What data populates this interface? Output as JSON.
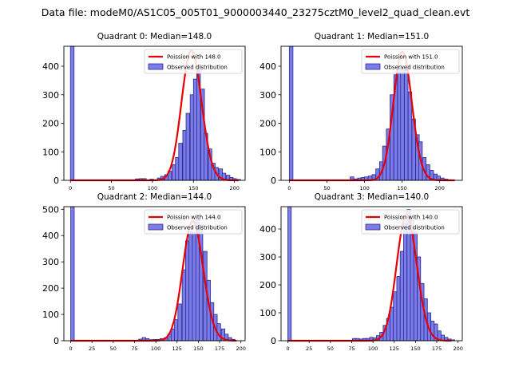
{
  "suptitle": "Data file: modeM0/AS1C05_005T01_9000003440_23275cztM0_level2_quad_clean.evt",
  "colors": {
    "bar_fill": "#7b7bea",
    "bar_edge": "#2b2b8c",
    "curve": "#e60000"
  },
  "chart_data": [
    {
      "type": "bar",
      "title": "Quadrant 0: Median=148.0",
      "legend": {
        "position": "top-right",
        "curve_label": "Poission with 148.0",
        "hist_label": "Observed distribution"
      },
      "xlim": [
        -8,
        213
      ],
      "ylim": [
        0,
        470
      ],
      "xticks": [
        0,
        50,
        100,
        150,
        200
      ],
      "yticks": [
        0,
        100,
        200,
        300,
        400
      ],
      "bin_width": 4.4,
      "bins": [
        [
          0,
          470
        ],
        [
          79,
          5
        ],
        [
          84,
          6
        ],
        [
          88,
          6
        ],
        [
          97,
          4
        ],
        [
          106,
          8
        ],
        [
          110,
          14
        ],
        [
          115,
          20
        ],
        [
          119,
          32
        ],
        [
          124,
          55
        ],
        [
          128,
          80
        ],
        [
          132,
          130
        ],
        [
          137,
          175
        ],
        [
          141,
          235
        ],
        [
          146,
          300
        ],
        [
          150,
          355
        ],
        [
          154,
          385
        ],
        [
          159,
          320
        ],
        [
          163,
          165
        ],
        [
          168,
          110
        ],
        [
          172,
          60
        ],
        [
          176,
          45
        ],
        [
          181,
          40
        ],
        [
          185,
          25
        ],
        [
          190,
          18
        ],
        [
          194,
          10
        ],
        [
          198,
          6
        ],
        [
          203,
          3
        ]
      ],
      "poisson_mean": 148.0,
      "poisson_peak": 455,
      "curve_range": [
        0,
        205
      ]
    },
    {
      "type": "bar",
      "title": "Quadrant 1: Median=151.0",
      "legend": {
        "position": "top-right",
        "curve_label": "Poission with 151.0",
        "hist_label": "Observed distribution"
      },
      "xlim": [
        -11,
        230
      ],
      "ylim": [
        0,
        470
      ],
      "xticks": [
        0,
        50,
        100,
        150,
        200
      ],
      "yticks": [
        0,
        100,
        200,
        300,
        400
      ],
      "bin_width": 4.8,
      "bins": [
        [
          0,
          470
        ],
        [
          81,
          12
        ],
        [
          86,
          5
        ],
        [
          91,
          8
        ],
        [
          96,
          10
        ],
        [
          100,
          12
        ],
        [
          105,
          15
        ],
        [
          110,
          20
        ],
        [
          115,
          40
        ],
        [
          120,
          65
        ],
        [
          124,
          120
        ],
        [
          129,
          180
        ],
        [
          134,
          300
        ],
        [
          139,
          370
        ],
        [
          144,
          390
        ],
        [
          148,
          400
        ],
        [
          153,
          385
        ],
        [
          158,
          310
        ],
        [
          163,
          215
        ],
        [
          168,
          160
        ],
        [
          172,
          135
        ],
        [
          177,
          80
        ],
        [
          182,
          55
        ],
        [
          187,
          35
        ],
        [
          192,
          22
        ],
        [
          196,
          15
        ],
        [
          201,
          8
        ],
        [
          206,
          4
        ],
        [
          211,
          2
        ]
      ],
      "poisson_mean": 151.0,
      "poisson_peak": 450,
      "curve_range": [
        0,
        220
      ]
    },
    {
      "type": "bar",
      "title": "Quadrant 2: Median=144.0",
      "legend": {
        "position": "top-right",
        "curve_label": "Poission with 144.0",
        "hist_label": "Observed distribution"
      },
      "xlim": [
        -8,
        205
      ],
      "ylim": [
        0,
        510
      ],
      "xticks": [
        0,
        25,
        50,
        75,
        100,
        125,
        150,
        175,
        200
      ],
      "yticks": [
        0,
        100,
        200,
        300,
        400,
        500
      ],
      "bin_width": 4.2,
      "bins": [
        [
          0,
          510
        ],
        [
          80,
          6
        ],
        [
          84,
          12
        ],
        [
          88,
          8
        ],
        [
          93,
          4
        ],
        [
          97,
          5
        ],
        [
          101,
          5
        ],
        [
          105,
          8
        ],
        [
          110,
          12
        ],
        [
          114,
          25
        ],
        [
          118,
          45
        ],
        [
          122,
          80
        ],
        [
          126,
          140
        ],
        [
          131,
          270
        ],
        [
          135,
          380
        ],
        [
          139,
          415
        ],
        [
          143,
          410
        ],
        [
          147,
          460
        ],
        [
          151,
          440
        ],
        [
          156,
          340
        ],
        [
          160,
          230
        ],
        [
          164,
          145
        ],
        [
          168,
          100
        ],
        [
          172,
          65
        ],
        [
          177,
          45
        ],
        [
          181,
          25
        ],
        [
          185,
          12
        ],
        [
          189,
          5
        ]
      ],
      "poisson_mean": 144.0,
      "poisson_peak": 455,
      "curve_range": [
        0,
        195
      ]
    },
    {
      "type": "bar",
      "title": "Quadrant 3: Median=140.0",
      "legend": {
        "position": "top-right",
        "curve_label": "Poission with 140.0",
        "hist_label": "Observed distribution"
      },
      "xlim": [
        -8,
        205
      ],
      "ylim": [
        0,
        480
      ],
      "xticks": [
        0,
        25,
        50,
        75,
        100,
        125,
        150,
        175,
        200
      ],
      "yticks": [
        0,
        100,
        200,
        300,
        400
      ],
      "bin_width": 4.0,
      "bins": [
        [
          0,
          480
        ],
        [
          76,
          8
        ],
        [
          80,
          8
        ],
        [
          84,
          6
        ],
        [
          88,
          8
        ],
        [
          92,
          8
        ],
        [
          96,
          12
        ],
        [
          100,
          10
        ],
        [
          104,
          18
        ],
        [
          108,
          30
        ],
        [
          112,
          55
        ],
        [
          116,
          80
        ],
        [
          120,
          120
        ],
        [
          124,
          175
        ],
        [
          128,
          230
        ],
        [
          132,
          320
        ],
        [
          136,
          420
        ],
        [
          140,
          470
        ],
        [
          144,
          430
        ],
        [
          148,
          390
        ],
        [
          152,
          300
        ],
        [
          156,
          205
        ],
        [
          160,
          150
        ],
        [
          164,
          100
        ],
        [
          168,
          70
        ],
        [
          172,
          60
        ],
        [
          176,
          35
        ],
        [
          180,
          20
        ],
        [
          184,
          12
        ],
        [
          188,
          6
        ],
        [
          192,
          3
        ]
      ],
      "poisson_mean": 140.0,
      "poisson_peak": 450,
      "curve_range": [
        0,
        192
      ]
    }
  ]
}
